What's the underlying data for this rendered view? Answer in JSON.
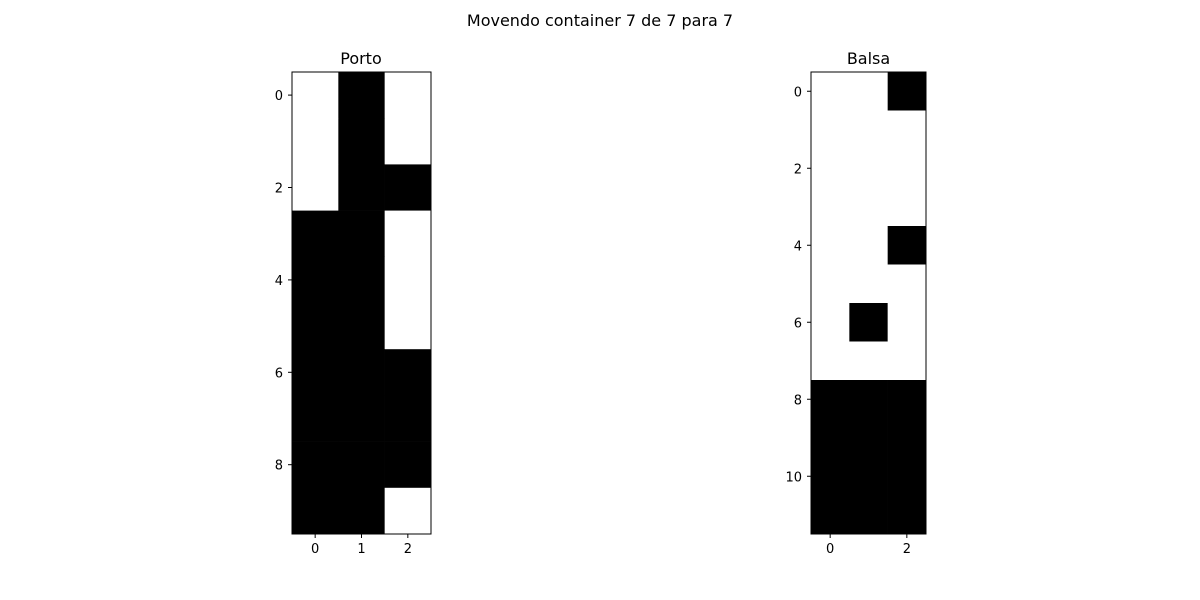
{
  "figure": {
    "suptitle": "Movendo container 7 de 7 para 7"
  },
  "colors": {
    "filled": "#000000",
    "empty": "#ffffff",
    "frame": "#000000"
  },
  "chart_data": [
    {
      "type": "heatmap",
      "title": "Porto",
      "xlabel": "",
      "ylabel": "",
      "rows": 10,
      "cols": 3,
      "x_ticks": [
        0,
        1,
        2
      ],
      "y_ticks": [
        0,
        2,
        4,
        6,
        8
      ],
      "grid": false,
      "values": [
        [
          0,
          1,
          0
        ],
        [
          0,
          1,
          0
        ],
        [
          0,
          1,
          1
        ],
        [
          1,
          1,
          0
        ],
        [
          1,
          1,
          0
        ],
        [
          1,
          1,
          0
        ],
        [
          1,
          1,
          1
        ],
        [
          1,
          1,
          1
        ],
        [
          1,
          1,
          1
        ],
        [
          1,
          1,
          0
        ]
      ]
    },
    {
      "type": "heatmap",
      "title": "Balsa",
      "xlabel": "",
      "ylabel": "",
      "rows": 12,
      "cols": 3,
      "x_ticks": [
        0,
        2
      ],
      "y_ticks": [
        0,
        2,
        4,
        6,
        8,
        10
      ],
      "grid": false,
      "values": [
        [
          0,
          0,
          1
        ],
        [
          0,
          0,
          0
        ],
        [
          0,
          0,
          0
        ],
        [
          0,
          0,
          0
        ],
        [
          0,
          0,
          1
        ],
        [
          0,
          0,
          0
        ],
        [
          0,
          1,
          0
        ],
        [
          0,
          0,
          0
        ],
        [
          1,
          1,
          1
        ],
        [
          1,
          1,
          1
        ],
        [
          1,
          1,
          1
        ],
        [
          1,
          1,
          1
        ]
      ]
    }
  ]
}
